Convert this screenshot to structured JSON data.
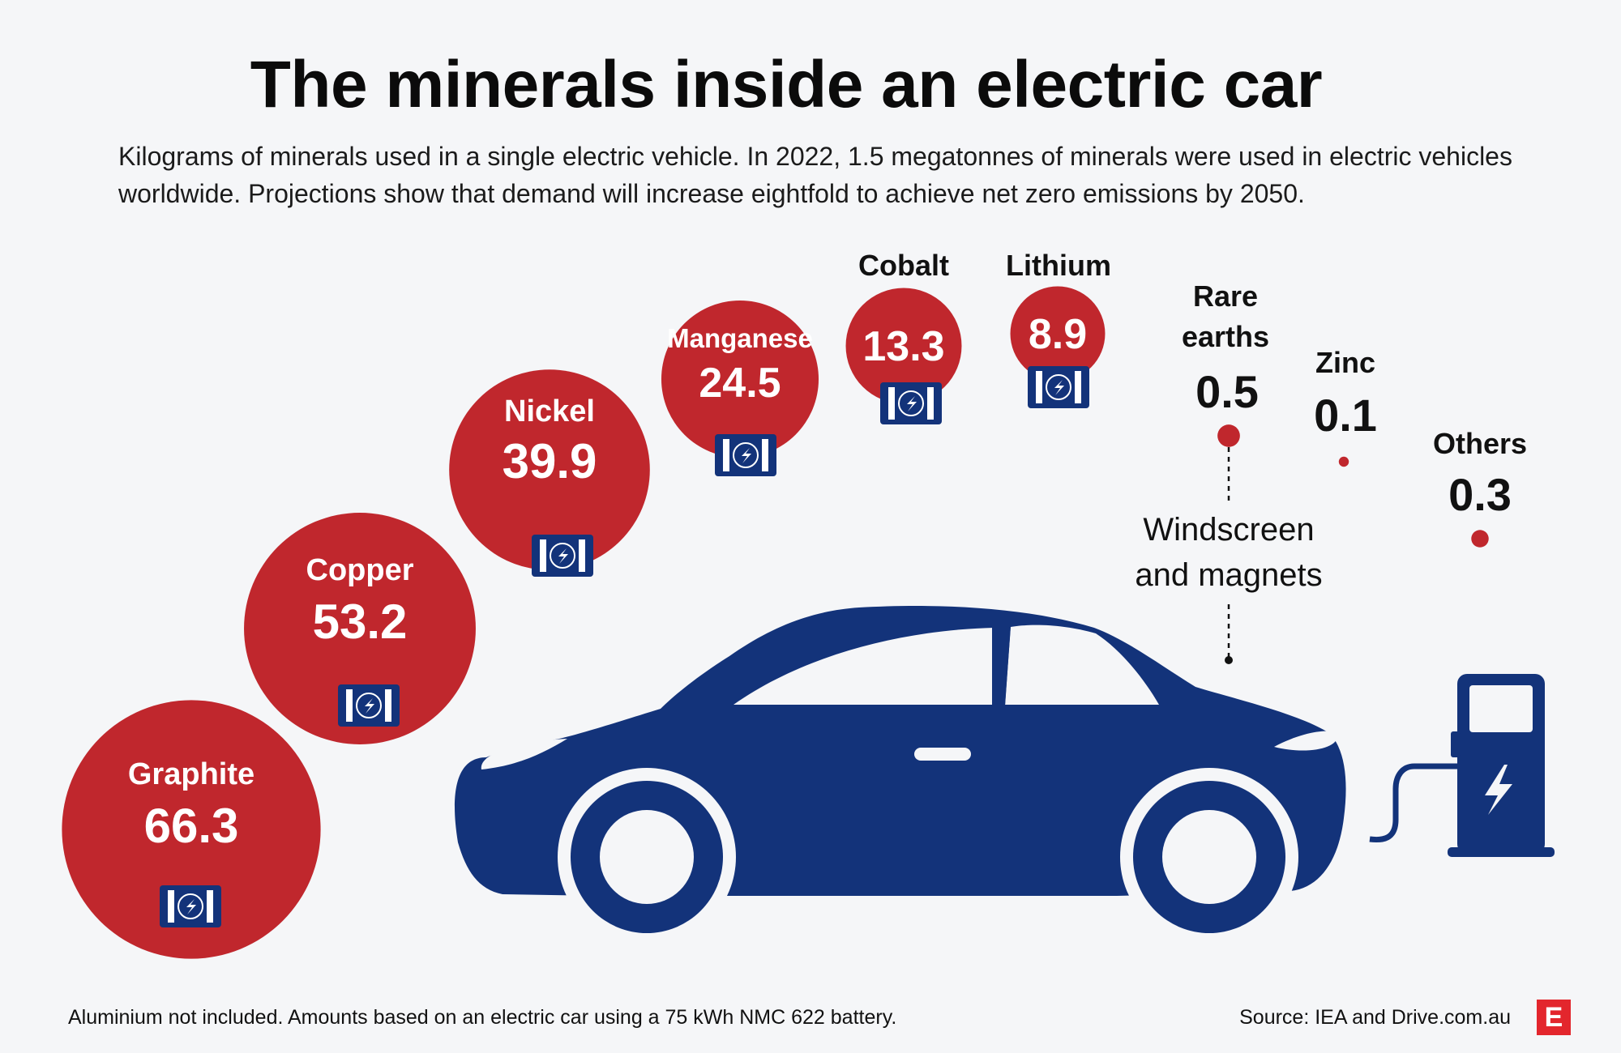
{
  "title": "The minerals inside an electric car",
  "subtitle": "Kilograms of minerals used in a single electric vehicle. In 2022, 1.5 megatonnes of minerals were used in electric vehicles worldwide. Projections show that demand will increase eightfold to achieve net zero emissions by 2050.",
  "footnote": "Aluminium not included. Amounts based on an electric car using a 75 kWh NMC 622 battery.",
  "source": "Source: IEA and Drive.com.au",
  "logo_letter": "E",
  "colors": {
    "bubble": "#c0272d",
    "car": "#13337a",
    "battery": "#13337a",
    "background": "#f5f6f8"
  },
  "chart_data": {
    "type": "bubble",
    "unit": "kg",
    "categories": [
      "Graphite",
      "Copper",
      "Nickel",
      "Manganese",
      "Cobalt",
      "Lithium",
      "Rare earths",
      "Zinc",
      "Others"
    ],
    "values": [
      66.3,
      53.2,
      39.9,
      24.5,
      13.3,
      8.9,
      0.5,
      0.1,
      0.3
    ],
    "value_labels": [
      "66.3",
      "53.2",
      "39.9",
      "24.5",
      "13.3",
      "8.9",
      "0.5",
      "0.1",
      "0.3"
    ],
    "battery_icon": [
      true,
      true,
      true,
      true,
      true,
      true,
      false,
      false,
      false
    ],
    "annotation": "Windscreen and magnets",
    "annotation_lines": [
      "Windscreen",
      "and magnets"
    ]
  }
}
